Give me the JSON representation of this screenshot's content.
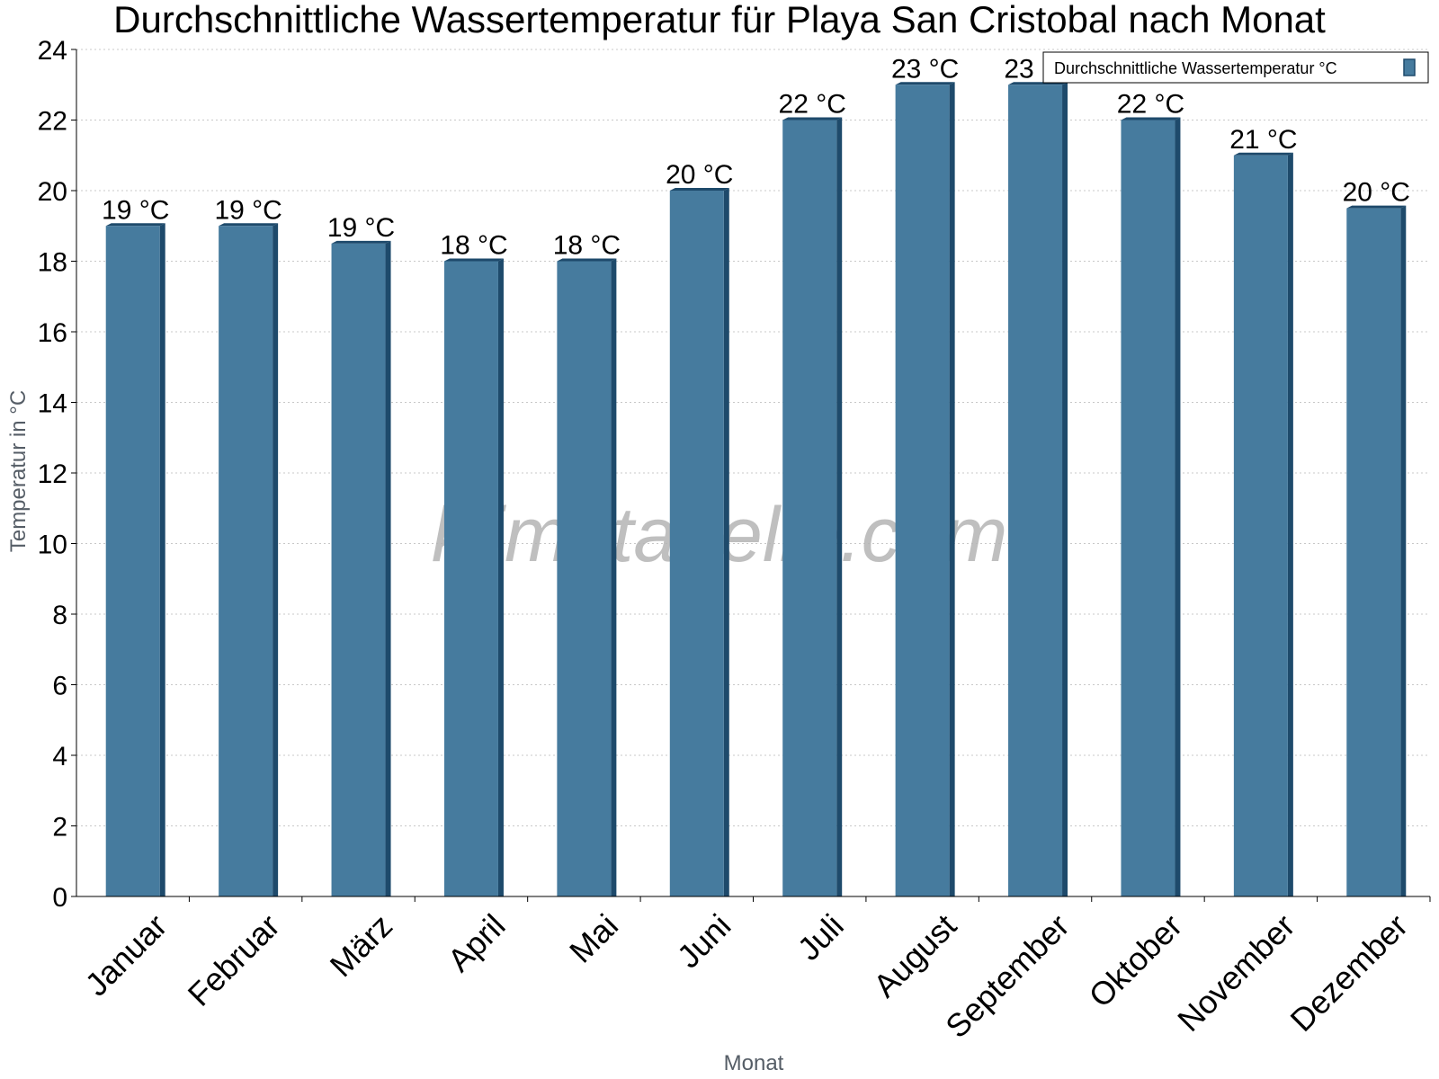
{
  "chart_data": {
    "type": "bar",
    "title": "Durchschnittliche Wassertemperatur für Playa San Cristobal nach Monat",
    "xlabel": "Monat",
    "ylabel": "Temperatur in °C",
    "categories": [
      "Januar",
      "Februar",
      "März",
      "April",
      "Mai",
      "Juni",
      "Juli",
      "August",
      "September",
      "Oktober",
      "November",
      "Dezember"
    ],
    "series": [
      {
        "name": "Durchschnittliche Wassertemperatur °C",
        "values": [
          19,
          19,
          18.5,
          18,
          18,
          20,
          22,
          23,
          23,
          22,
          21,
          19.5
        ],
        "labels": [
          "19 °C",
          "19 °C",
          "19 °C",
          "18 °C",
          "18 °C",
          "20 °C",
          "22 °C",
          "23 °C",
          "23 °C",
          "22 °C",
          "21 °C",
          "20 °C"
        ]
      }
    ],
    "ylim": [
      0,
      24
    ],
    "yticks": [
      "0",
      "2",
      "4",
      "6",
      "8",
      "10",
      "12",
      "14",
      "16",
      "18",
      "20",
      "22",
      "24"
    ],
    "grid": true,
    "legend_position": "top-right",
    "colors": {
      "bar": "#467b9e",
      "bar_side": "#1e4a6b",
      "grid": "#c8c8c8"
    },
    "watermark": "klimatabelle.com"
  }
}
